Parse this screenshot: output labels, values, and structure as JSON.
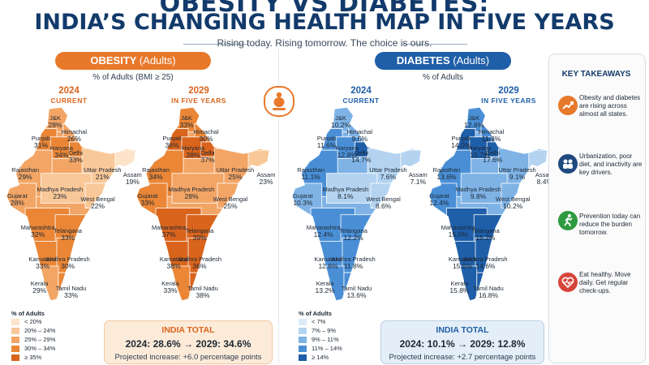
{
  "header": {
    "title_line1": "OBESITY VS DIABETES:",
    "title_line2": "INDIA’S CHANGING HEALTH MAP IN FIVE YEARS",
    "subtitle": "Rising today. Rising tomorrow. The choice is ours."
  },
  "colors": {
    "obesity_accent": "#e8792b",
    "diabetes_accent": "#1f5ea8",
    "title": "#123a6b"
  },
  "icons": {
    "center": "person-scale-icon",
    "takeaway_1": "trend-up-icon",
    "takeaway_2": "people-icon",
    "takeaway_3": "running-person-icon",
    "takeaway_4": "heart-pulse-icon"
  },
  "obesity": {
    "pill_label": "OBESITY",
    "pill_sub": "(Adults)",
    "measure": "% of Adults (BMI ≥ 25)",
    "year_2024": "2024",
    "year_2024_sub": "CURRENT",
    "year_2029": "2029",
    "year_2029_sub": "IN FIVE YEARS",
    "total_title": "INDIA TOTAL",
    "total_2024": "2024: 28.6%",
    "arrow": "→",
    "total_2029": "2029: 34.6%",
    "projection": "Projected increase: +6.0 percentage points",
    "legend_title": "% of Adults",
    "legend": [
      "< 20%",
      "20% – 24%",
      "25% – 29%",
      "30% – 34%",
      "≥ 35%"
    ],
    "legend_colors": [
      "#fde3c7",
      "#f9c898",
      "#f3a565",
      "#ea8636",
      "#d9641c"
    ]
  },
  "diabetes": {
    "pill_label": "DIABETES",
    "pill_sub": "(Adults)",
    "measure": "% of Adults",
    "year_2024": "2024",
    "year_2024_sub": "CURRENT",
    "year_2029": "2029",
    "year_2029_sub": "IN FIVE YEARS",
    "total_title": "INDIA TOTAL",
    "total_2024": "2024: 10.1%",
    "arrow": "→",
    "total_2029": "2029: 12.8%",
    "projection": "Projected increase: +2.7 percentage points",
    "legend_title": "% of Adults",
    "legend": [
      "< 7%",
      "7% – 9%",
      "9% – 11%",
      "11% – 14%",
      "≥ 14%"
    ],
    "legend_colors": [
      "#dcebf8",
      "#b3d3f0",
      "#7fb3e6",
      "#4a8fd6",
      "#1f5ea8"
    ]
  },
  "takeaways": {
    "title": "KEY TAKEAWAYS",
    "items": [
      "Obesity and diabetes are rising across almost all states.",
      "Urbanization, poor diet, and inactivity are key drivers.",
      "Prevention today can reduce the burden tomorrow.",
      "Eat healthy. Move daily. Get regular check-ups."
    ]
  },
  "chart_data": [
    {
      "type": "map",
      "title": "OBESITY (Adults)",
      "subtitle": "% of Adults (BMI ≥ 25) — 2024 CURRENT",
      "unit": "%",
      "categories": [
        "J&K",
        "Himachal",
        "Punjab",
        "Haryana",
        "Delhi",
        "Rajasthan",
        "Uttar Pradesh",
        "Assam",
        "Gujarat",
        "Madhya Pradesh",
        "West Bengal",
        "Maharashtra",
        "Telangana",
        "Karnataka",
        "Andhra Pradesh",
        "Kerala",
        "Tamil Nadu"
      ],
      "values": [
        28,
        26,
        31,
        34,
        33,
        29,
        21,
        19,
        28,
        23,
        22,
        32,
        33,
        33,
        30,
        29,
        33
      ]
    },
    {
      "type": "map",
      "title": "OBESITY (Adults)",
      "subtitle": "% of Adults (BMI ≥ 25) — 2029 IN FIVE YEARS",
      "unit": "%",
      "categories": [
        "J&K",
        "Himachal",
        "Punjab",
        "Haryana",
        "Delhi",
        "Rajasthan",
        "Uttar Pradesh",
        "Assam",
        "Gujarat",
        "Madhya Pradesh",
        "West Bengal",
        "Maharashtra",
        "Telangana",
        "Karnataka",
        "Andhra Pradesh",
        "Kerala",
        "Tamil Nadu"
      ],
      "values": [
        33,
        30,
        36,
        38,
        37,
        34,
        25,
        23,
        33,
        28,
        25,
        37,
        39,
        38,
        36,
        33,
        38
      ]
    },
    {
      "type": "map",
      "title": "DIABETES (Adults)",
      "subtitle": "% of Adults — 2024 CURRENT",
      "unit": "%",
      "categories": [
        "J&K",
        "Himachal",
        "Punjab",
        "Haryana",
        "Delhi",
        "Rajasthan",
        "Uttar Pradesh",
        "Assam",
        "Gujarat",
        "Madhya Pradesh",
        "West Bengal",
        "Maharashtra",
        "Telangana",
        "Karnataka",
        "Andhra Pradesh",
        "Kerala",
        "Tamil Nadu"
      ],
      "values": [
        10.2,
        9.5,
        11.6,
        12.8,
        14.7,
        11.1,
        7.6,
        7.1,
        10.3,
        8.1,
        8.6,
        12.4,
        12.2,
        12.6,
        11.8,
        13.2,
        13.6
      ]
    },
    {
      "type": "map",
      "title": "DIABETES (Adults)",
      "subtitle": "% of Adults — 2029 IN FIVE YEARS",
      "unit": "%",
      "categories": [
        "J&K",
        "Himachal",
        "Punjab",
        "Haryana",
        "Delhi",
        "Rajasthan",
        "Uttar Pradesh",
        "Assam",
        "Gujarat",
        "Madhya Pradesh",
        "West Bengal",
        "Maharashtra",
        "Telangana",
        "Karnataka",
        "Andhra Pradesh",
        "Kerala",
        "Tamil Nadu"
      ],
      "values": [
        12.6,
        11.8,
        14.0,
        15.7,
        17.6,
        13.6,
        9.1,
        8.4,
        12.4,
        9.8,
        10.2,
        15.0,
        15.2,
        15.6,
        14.6,
        15.8,
        16.8
      ]
    }
  ]
}
